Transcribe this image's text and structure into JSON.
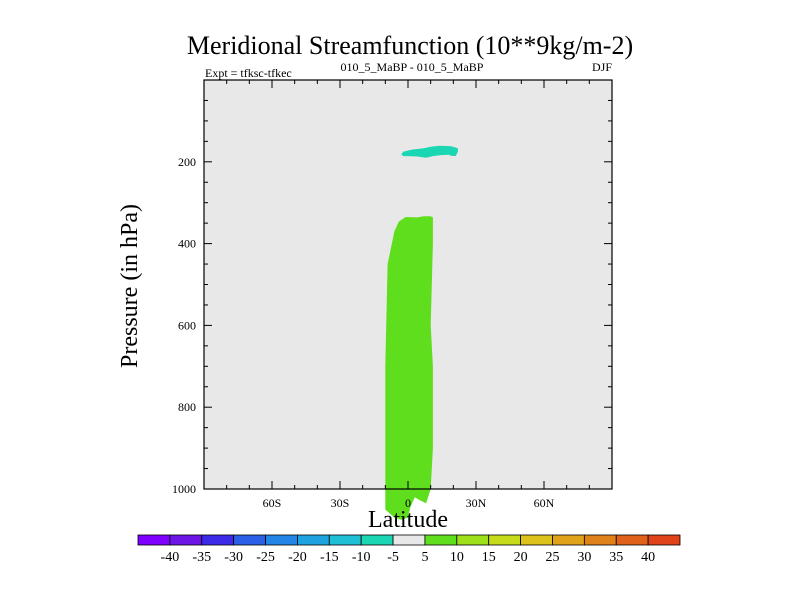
{
  "chart_data": {
    "type": "contour",
    "title": "Meridional Streamfunction (10**9kg/m-2)",
    "subtitle_left": "Expt = tfksc-tfkec",
    "subtitle_center": "010_5_MaBP - 010_5_MaBP",
    "subtitle_right": "DJF",
    "xlabel": "Latitude",
    "ylabel": "Pressure (in hPa)",
    "xlim": [
      -90,
      90
    ],
    "ylim": [
      1000,
      0
    ],
    "x_ticks": [
      {
        "value": -60,
        "label": "60S"
      },
      {
        "value": -30,
        "label": "30S"
      },
      {
        "value": 0,
        "label": "0"
      },
      {
        "value": 30,
        "label": "30N"
      },
      {
        "value": 60,
        "label": "60N"
      }
    ],
    "y_ticks": [
      {
        "value": 200,
        "label": "200"
      },
      {
        "value": 400,
        "label": "400"
      },
      {
        "value": 600,
        "label": "600"
      },
      {
        "value": 800,
        "label": "800"
      },
      {
        "value": 1000,
        "label": "1000"
      }
    ],
    "background_color": "#e8e8e8",
    "regions": [
      {
        "name": "upper-cell",
        "level": "-10 to -5",
        "color": "#1ad6b3",
        "outline": [
          [
            -3,
            182
          ],
          [
            -2,
            175
          ],
          [
            2,
            170
          ],
          [
            7,
            167
          ],
          [
            10,
            163
          ],
          [
            14,
            161
          ],
          [
            19,
            162
          ],
          [
            22,
            167
          ],
          [
            22,
            175
          ],
          [
            21,
            186
          ],
          [
            19,
            185
          ],
          [
            18,
            183
          ],
          [
            14,
            184
          ],
          [
            11,
            186
          ],
          [
            8,
            190
          ],
          [
            4,
            187
          ],
          [
            0,
            186
          ],
          [
            -2,
            186
          ]
        ]
      },
      {
        "name": "lower-cell",
        "level": "5 to 10",
        "color": "#5fde1e",
        "outline": [
          [
            -6,
            370
          ],
          [
            -4,
            346
          ],
          [
            -1,
            335
          ],
          [
            4,
            336
          ],
          [
            7,
            333
          ],
          [
            10,
            333
          ],
          [
            11,
            336
          ],
          [
            11,
            400
          ],
          [
            10,
            600
          ],
          [
            11,
            700
          ],
          [
            11,
            900
          ],
          [
            10,
            1000
          ],
          [
            8,
            1035
          ],
          [
            5,
            1027
          ],
          [
            3,
            1020
          ],
          [
            1,
            1045
          ],
          [
            0,
            1070
          ],
          [
            -3,
            1075
          ],
          [
            -6,
            1070
          ],
          [
            -10,
            1050
          ],
          [
            -10,
            900
          ],
          [
            -10,
            700
          ],
          [
            -9,
            450
          ]
        ]
      }
    ],
    "colorbar": {
      "labels": [
        "-40",
        "-35",
        "-30",
        "-25",
        "-20",
        "-15",
        "-10",
        "-5",
        "5",
        "10",
        "15",
        "20",
        "25",
        "30",
        "35",
        "40"
      ],
      "colors": [
        "#8000ff",
        "#6c15e6",
        "#3c2ae8",
        "#2a5fe6",
        "#2385e6",
        "#1ea3e0",
        "#1fbfd6",
        "#1ad6b3",
        "#e8e8e8",
        "#5fde1e",
        "#9ee01a",
        "#c6dc1a",
        "#dcc21a",
        "#e0a21a",
        "#e0821a",
        "#e0621a",
        "#e0421a"
      ]
    }
  }
}
